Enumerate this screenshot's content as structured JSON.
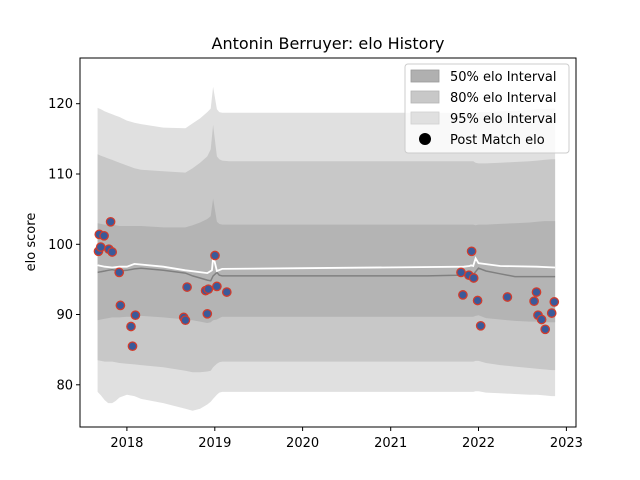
{
  "chart_data": {
    "type": "area",
    "title": "Antonin Berruyer: elo History",
    "xlabel": "",
    "ylabel": "elo score",
    "xlim": [
      "2017-06-20",
      "2023-02-10"
    ],
    "ylim": [
      74,
      126.5
    ],
    "x_ticks": [
      "2018",
      "2019",
      "2020",
      "2021",
      "2022",
      "2023"
    ],
    "y_ticks": [
      80,
      90,
      100,
      110,
      120
    ],
    "grid": false,
    "legend_position": "top-right",
    "legend": [
      {
        "label": "50% elo Interval",
        "kind": "band",
        "color": "#b0b0b0"
      },
      {
        "label": "80% elo Interval",
        "kind": "band",
        "color": "#c8c8c8"
      },
      {
        "label": "95% elo Interval",
        "kind": "band",
        "color": "#e0e0e0"
      },
      {
        "label": "Post Match elo",
        "kind": "marker",
        "color": "#000000"
      }
    ],
    "colors": {
      "band50": "#b0b0b0",
      "band80": "#c8c8c8",
      "band95": "#e0e0e0",
      "mean_line": "#808080",
      "post_line": "#ffffff",
      "point_fill": "#3a5a9a",
      "point_edge": "#d23c2c"
    },
    "bands": {
      "x": [
        "2017-09-01",
        "2017-09-15",
        "2017-10-01",
        "2017-10-15",
        "2017-11-01",
        "2017-11-15",
        "2017-12-01",
        "2018-01-01",
        "2018-02-01",
        "2018-03-01",
        "2018-06-01",
        "2018-09-01",
        "2018-10-01",
        "2018-11-01",
        "2018-12-01",
        "2018-12-15",
        "2018-12-25",
        "2019-01-10",
        "2019-01-20",
        "2019-02-01",
        "2019-03-01",
        "2019-06-01",
        "2020-01-01",
        "2021-01-01",
        "2021-06-01",
        "2021-10-01",
        "2021-11-01",
        "2021-11-15",
        "2021-11-25",
        "2021-12-01",
        "2021-12-10",
        "2021-12-20",
        "2022-01-01",
        "2022-02-01",
        "2022-04-01",
        "2022-06-01",
        "2022-08-01",
        "2022-09-01",
        "2022-10-01",
        "2022-11-01",
        "2022-11-15"
      ],
      "mean": [
        96.0,
        96.1,
        96.2,
        96.3,
        96.4,
        96.3,
        96.2,
        96.3,
        96.5,
        96.6,
        96.3,
        95.9,
        95.5,
        95.2,
        94.9,
        94.8,
        95.5,
        96.0,
        95.6,
        95.5,
        95.5,
        95.5,
        95.5,
        95.5,
        95.5,
        95.6,
        95.7,
        95.7,
        95.8,
        95.8,
        95.7,
        96.1,
        96.6,
        96.2,
        95.8,
        95.4,
        95.4,
        95.4,
        95.4,
        95.4,
        95.4
      ],
      "lo50": [
        89.2,
        89.3,
        89.4,
        89.5,
        89.6,
        89.6,
        89.6,
        89.7,
        89.7,
        89.8,
        89.6,
        89.3,
        89.2,
        89.0,
        88.8,
        88.9,
        89.2,
        89.3,
        89.5,
        89.7,
        89.7,
        89.7,
        89.7,
        89.7,
        89.7,
        89.7,
        89.7,
        89.7,
        89.7,
        89.7,
        89.7,
        89.8,
        89.9,
        89.5,
        89.3,
        89.1,
        89.0,
        89.0,
        88.9,
        88.9,
        88.9
      ],
      "hi50": [
        103.0,
        102.9,
        102.8,
        102.8,
        102.8,
        102.7,
        102.6,
        102.6,
        102.6,
        102.6,
        102.4,
        102.4,
        102.7,
        103.1,
        103.6,
        104.0,
        106.5,
        103.2,
        102.9,
        102.8,
        102.8,
        102.8,
        102.8,
        102.8,
        102.8,
        102.8,
        102.8,
        102.8,
        102.8,
        102.8,
        102.8,
        102.7,
        102.8,
        102.8,
        102.9,
        103.0,
        103.1,
        103.2,
        103.3,
        103.3,
        103.3
      ],
      "lo80": [
        83.5,
        83.4,
        83.3,
        83.3,
        83.3,
        83.2,
        83.1,
        83.0,
        82.9,
        82.8,
        82.5,
        82.0,
        81.8,
        81.8,
        81.9,
        82.0,
        82.5,
        83.0,
        83.2,
        83.3,
        83.3,
        83.3,
        83.3,
        83.3,
        83.3,
        83.3,
        83.3,
        83.3,
        83.3,
        83.3,
        83.3,
        83.4,
        83.4,
        83.1,
        82.8,
        82.6,
        82.4,
        82.3,
        82.2,
        82.1,
        82.1
      ],
      "hi80": [
        112.8,
        112.6,
        112.4,
        112.2,
        112.0,
        111.8,
        111.6,
        111.2,
        110.8,
        110.6,
        110.4,
        110.2,
        110.8,
        111.6,
        112.5,
        113.5,
        117.0,
        112.5,
        112.1,
        111.9,
        111.8,
        111.8,
        111.8,
        111.8,
        111.8,
        111.8,
        111.8,
        111.8,
        111.8,
        111.8,
        111.8,
        111.6,
        111.5,
        111.5,
        111.6,
        111.7,
        111.8,
        111.9,
        112.0,
        112.1,
        112.1
      ],
      "lo95": [
        79.0,
        78.5,
        77.8,
        77.4,
        77.4,
        77.7,
        78.2,
        78.6,
        78.4,
        78.0,
        77.4,
        76.6,
        76.3,
        76.6,
        77.2,
        77.6,
        78.0,
        78.6,
        78.9,
        79.0,
        79.0,
        79.0,
        79.0,
        79.0,
        79.0,
        79.0,
        79.0,
        79.0,
        79.0,
        79.0,
        79.0,
        79.1,
        79.1,
        78.9,
        78.8,
        78.7,
        78.6,
        78.6,
        78.5,
        78.4,
        78.4
      ],
      "hi95": [
        119.4,
        119.2,
        118.9,
        118.7,
        118.5,
        118.3,
        118.1,
        117.6,
        117.3,
        117.1,
        116.6,
        116.5,
        117.2,
        117.9,
        118.8,
        119.3,
        122.4,
        119.2,
        118.8,
        118.7,
        118.7,
        118.7,
        118.7,
        118.7,
        118.7,
        118.7,
        118.7,
        118.7,
        118.7,
        118.7,
        118.7,
        118.7,
        118.8,
        118.8,
        118.9,
        119.0,
        119.1,
        119.2,
        119.2,
        119.3,
        119.3
      ]
    },
    "post_line": {
      "x": [
        "2017-09-01",
        "2017-10-01",
        "2017-11-01",
        "2017-12-01",
        "2018-01-01",
        "2018-02-01",
        "2018-06-01",
        "2018-09-01",
        "2018-12-01",
        "2018-12-20",
        "2018-12-26",
        "2019-01-10",
        "2019-02-01",
        "2020-01-01",
        "2021-11-01",
        "2021-11-25",
        "2021-12-01",
        "2021-12-10",
        "2021-12-20",
        "2022-01-01",
        "2022-04-01",
        "2022-09-01",
        "2022-11-15"
      ],
      "y": [
        97.0,
        96.8,
        96.7,
        96.8,
        96.8,
        97.2,
        96.8,
        96.3,
        95.9,
        96.3,
        98.3,
        96.2,
        96.5,
        96.6,
        96.8,
        96.9,
        97.0,
        96.9,
        98.0,
        97.3,
        96.9,
        96.8,
        96.7
      ]
    },
    "points": [
      {
        "x": "2017-09-05",
        "y": 99.0
      },
      {
        "x": "2017-09-08",
        "y": 101.4
      },
      {
        "x": "2017-09-14",
        "y": 99.6
      },
      {
        "x": "2017-09-28",
        "y": 101.2
      },
      {
        "x": "2017-10-18",
        "y": 99.3
      },
      {
        "x": "2017-10-25",
        "y": 103.2
      },
      {
        "x": "2017-11-01",
        "y": 98.9
      },
      {
        "x": "2017-11-30",
        "y": 96.0
      },
      {
        "x": "2017-12-05",
        "y": 91.3
      },
      {
        "x": "2018-01-18",
        "y": 88.3
      },
      {
        "x": "2018-01-24",
        "y": 85.5
      },
      {
        "x": "2018-02-05",
        "y": 89.9
      },
      {
        "x": "2018-08-25",
        "y": 89.6
      },
      {
        "x": "2018-09-01",
        "y": 89.2
      },
      {
        "x": "2018-09-08",
        "y": 93.9
      },
      {
        "x": "2018-11-24",
        "y": 93.4
      },
      {
        "x": "2018-12-01",
        "y": 90.1
      },
      {
        "x": "2018-12-05",
        "y": 93.6
      },
      {
        "x": "2019-01-02",
        "y": 98.4
      },
      {
        "x": "2019-01-10",
        "y": 94.0
      },
      {
        "x": "2019-02-20",
        "y": 93.2
      },
      {
        "x": "2021-10-20",
        "y": 96.0
      },
      {
        "x": "2021-10-28",
        "y": 92.8
      },
      {
        "x": "2021-11-22",
        "y": 95.6
      },
      {
        "x": "2021-12-03",
        "y": 99.0
      },
      {
        "x": "2021-12-12",
        "y": 95.2
      },
      {
        "x": "2021-12-28",
        "y": 92.0
      },
      {
        "x": "2022-01-10",
        "y": 88.4
      },
      {
        "x": "2022-05-01",
        "y": 92.5
      },
      {
        "x": "2022-08-20",
        "y": 91.9
      },
      {
        "x": "2022-08-30",
        "y": 93.2
      },
      {
        "x": "2022-09-05",
        "y": 89.9
      },
      {
        "x": "2022-09-20",
        "y": 89.3
      },
      {
        "x": "2022-10-05",
        "y": 87.9
      },
      {
        "x": "2022-11-01",
        "y": 90.2
      },
      {
        "x": "2022-11-12",
        "y": 91.8
      }
    ]
  }
}
